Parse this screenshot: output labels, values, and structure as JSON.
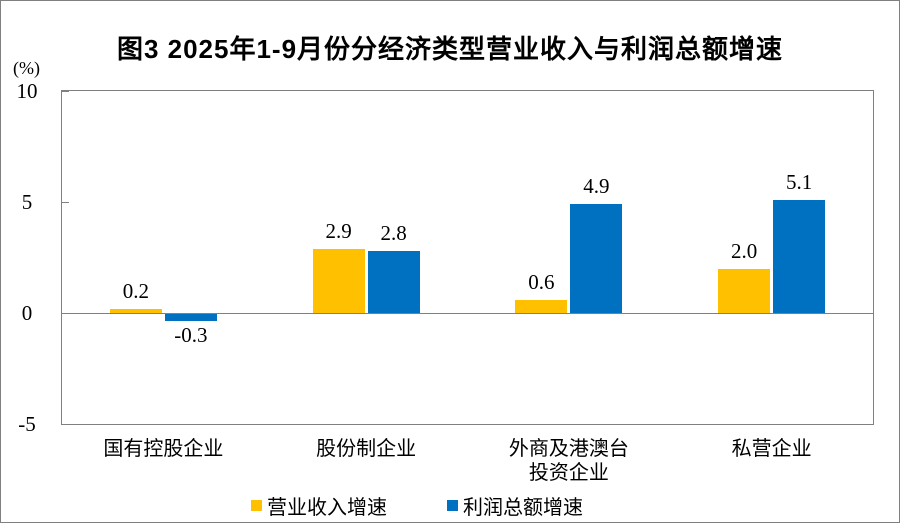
{
  "chart_data": {
    "type": "bar",
    "title": "图3 2025年1-9月份分经济类型营业收入与利润总额增速",
    "ylabel": "(%)",
    "ylim": [
      -5,
      10
    ],
    "yticks": [
      10,
      5,
      0,
      -5
    ],
    "grid": false,
    "legend_position": "bottom",
    "axis_color": "#808080",
    "categories": [
      "国有控股企业",
      "股份制企业",
      "外商及港澳台\n投资企业",
      "私营企业"
    ],
    "series": [
      {
        "name": "营业收入增速",
        "color": "#FFC000",
        "values": [
          0.2,
          2.9,
          0.6,
          2.0
        ]
      },
      {
        "name": "利润总额增速",
        "color": "#0070C0",
        "values": [
          -0.3,
          2.8,
          4.9,
          5.1
        ]
      }
    ],
    "value_label_decimals": 1
  }
}
